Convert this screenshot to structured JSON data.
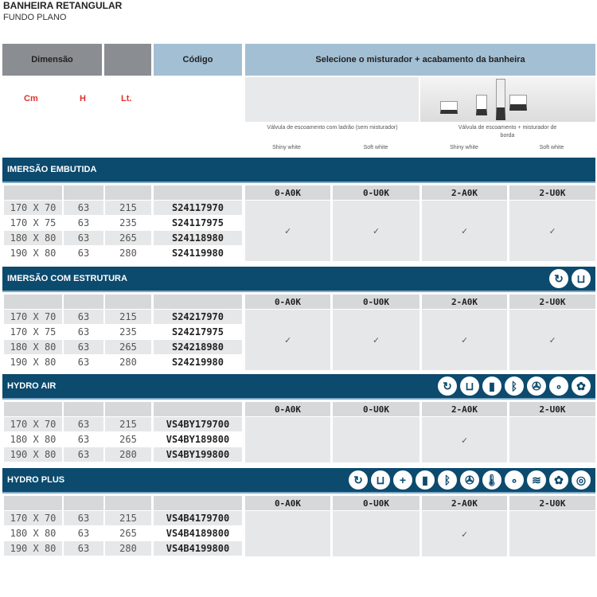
{
  "title": "BANHEIRA RETANGULAR",
  "subtitle": "FUNDO PLANO",
  "header": {
    "dimensao": "Dimensão",
    "codigo": "Código",
    "selecione": "Selecione o misturador + acabamento da banheira"
  },
  "units": {
    "cm": "Cm",
    "h": "H",
    "lt": "Lt."
  },
  "options": [
    {
      "caption": "Válvula de escoamento com ladrão (sem misturador)",
      "finishes": [
        "Shiny white",
        "Soft white"
      ]
    },
    {
      "caption": "Válvula de escoamento + misturador de borda",
      "finishes": [
        "Shiny white",
        "Soft white"
      ]
    }
  ],
  "codes": [
    "0-A0K",
    "0-U0K",
    "2-A0K",
    "2-U0K"
  ],
  "check": "✓",
  "sections": [
    {
      "title": "IMERSÃO EMBUTIDA",
      "icons": [],
      "checks": [
        true,
        true,
        true,
        true
      ],
      "rows": [
        [
          "170 X 70",
          "63",
          "215",
          "S24117970"
        ],
        [
          "170 X 75",
          "63",
          "235",
          "S24117975"
        ],
        [
          "180 X 80",
          "63",
          "265",
          "S24118980"
        ],
        [
          "190 X 80",
          "63",
          "280",
          "S24119980"
        ]
      ]
    },
    {
      "title": "IMERSÃO COM ESTRUTURA",
      "icons": [
        "headrest-icon",
        "grab-handle-icon"
      ],
      "checks": [
        true,
        true,
        true,
        true
      ],
      "rows": [
        [
          "170 X 70",
          "63",
          "215",
          "S24217970"
        ],
        [
          "170 X 75",
          "63",
          "235",
          "S24217975"
        ],
        [
          "180 X 80",
          "63",
          "265",
          "S24218980"
        ],
        [
          "190 X 80",
          "63",
          "280",
          "S24219980"
        ]
      ]
    },
    {
      "title": "HYDRO AIR",
      "icons": [
        "headrest-icon",
        "grab-handle-icon",
        "led-light-icon",
        "bluetooth-icon",
        "air-jets-icon",
        "bubbles-icon",
        "aroma-icon"
      ],
      "checks": [
        false,
        false,
        true,
        false
      ],
      "rows": [
        [
          "170 X 70",
          "63",
          "215",
          "VS4BY179700"
        ],
        [
          "180 X 80",
          "63",
          "265",
          "VS4BY189800"
        ],
        [
          "190 X 80",
          "63",
          "280",
          "VS4BY199800"
        ]
      ]
    },
    {
      "title": "HYDRO PLUS",
      "icons": [
        "headrest-icon",
        "grab-handle-icon",
        "plus-icon",
        "led-light-icon",
        "bluetooth-icon",
        "air-jets-icon",
        "thermometer-icon",
        "bubbles-icon",
        "hydro-jets-icon",
        "aroma-icon",
        "whirlpool-icon"
      ],
      "checks": [
        false,
        false,
        true,
        false
      ],
      "rows": [
        [
          "170 X 70",
          "63",
          "215",
          "VS4B4179700"
        ],
        [
          "180 X 80",
          "63",
          "265",
          "VS4B4189800"
        ],
        [
          "190 X 80",
          "63",
          "280",
          "VS4B4199800"
        ]
      ]
    }
  ]
}
